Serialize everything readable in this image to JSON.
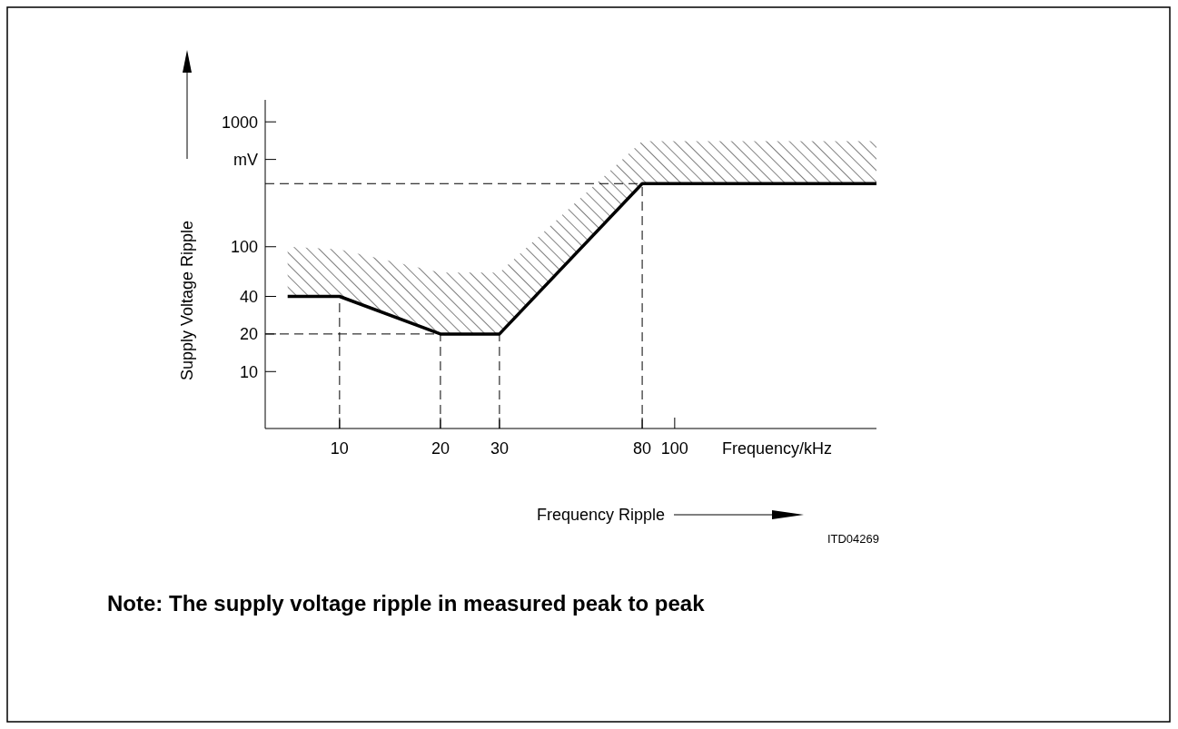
{
  "chart_data": {
    "type": "line",
    "xlabel": "Frequency Ripple",
    "ylabel": "Supply Voltage Ripple",
    "log": "xy",
    "x": [
      7,
      10,
      20,
      30,
      80,
      400
    ],
    "series": [
      {
        "color": "#000000",
        "values": [
          40,
          40,
          20,
          20,
          320,
          320
        ],
        "lower": [
          40,
          40,
          20,
          20,
          320,
          320
        ],
        "upper": [
          100,
          95,
          62,
          62,
          700,
          700
        ]
      }
    ],
    "xlim": [
      6,
      400
    ],
    "xticks": [
      10,
      20,
      30,
      80,
      100
    ],
    "ylim": [
      3.5,
      1500
    ],
    "yticks": [
      10,
      20,
      40,
      100,
      {
        "value": 500,
        "label": "mV"
      },
      1000
    ],
    "ref_lines": [
      {
        "axis": "x",
        "value": 10,
        "line_style": "dashed"
      },
      {
        "axis": "x",
        "value": 20,
        "line_style": "dashed"
      },
      {
        "axis": "x",
        "value": 30,
        "line_style": "dashed"
      },
      {
        "axis": "x",
        "value": 80,
        "line_style": "dashed"
      },
      {
        "axis": "y",
        "value": 20,
        "line_style": "dashed"
      },
      {
        "axis": "y",
        "value": 320,
        "line_style": "dashed"
      }
    ],
    "grid": false,
    "marker": "none",
    "line_style": "solid",
    "annotations": [
      "Frequency/kHz",
      "ITD04269",
      "Note:  The supply voltage ripple in measured peak to peak"
    ]
  }
}
